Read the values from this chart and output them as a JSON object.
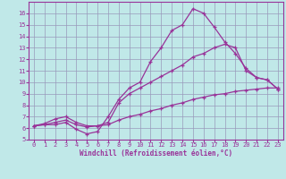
{
  "xlabel": "Windchill (Refroidissement éolien,°C)",
  "xlim": [
    -0.5,
    23.5
  ],
  "ylim": [
    5,
    17
  ],
  "xticks": [
    0,
    1,
    2,
    3,
    4,
    5,
    6,
    7,
    8,
    9,
    10,
    11,
    12,
    13,
    14,
    15,
    16,
    17,
    18,
    19,
    20,
    21,
    22,
    23
  ],
  "yticks": [
    5,
    6,
    7,
    8,
    9,
    10,
    11,
    12,
    13,
    14,
    15,
    16
  ],
  "bg_color": "#c0e8e8",
  "grid_color": "#9999bb",
  "line_color": "#993399",
  "line1_x": [
    0,
    1,
    2,
    3,
    4,
    5,
    6,
    7,
    8,
    9,
    10,
    11,
    12,
    13,
    14,
    15,
    16,
    17,
    18,
    19,
    20,
    21,
    22,
    23
  ],
  "line1_y": [
    6.2,
    6.3,
    6.3,
    6.5,
    5.9,
    5.5,
    5.7,
    7.0,
    8.5,
    9.5,
    10.0,
    11.8,
    13.0,
    14.5,
    15.0,
    16.4,
    16.0,
    14.8,
    13.5,
    12.5,
    11.2,
    10.4,
    10.2,
    9.4
  ],
  "line2_x": [
    0,
    1,
    2,
    3,
    4,
    5,
    6,
    7,
    8,
    9,
    10,
    11,
    12,
    13,
    14,
    15,
    16,
    17,
    18,
    19,
    20,
    21,
    22,
    23
  ],
  "line2_y": [
    6.2,
    6.4,
    6.8,
    7.0,
    6.5,
    6.2,
    6.2,
    6.5,
    8.2,
    9.0,
    9.5,
    10.0,
    10.5,
    11.0,
    11.5,
    12.2,
    12.5,
    13.0,
    13.3,
    13.0,
    11.0,
    10.4,
    10.2,
    9.4
  ],
  "line3_x": [
    0,
    1,
    2,
    3,
    4,
    5,
    6,
    7,
    8,
    9,
    10,
    11,
    12,
    13,
    14,
    15,
    16,
    17,
    18,
    19,
    20,
    21,
    22,
    23
  ],
  "line3_y": [
    6.2,
    6.3,
    6.5,
    6.7,
    6.3,
    6.1,
    6.2,
    6.3,
    6.7,
    7.0,
    7.2,
    7.5,
    7.7,
    8.0,
    8.2,
    8.5,
    8.7,
    8.9,
    9.0,
    9.2,
    9.3,
    9.4,
    9.5,
    9.5
  ]
}
